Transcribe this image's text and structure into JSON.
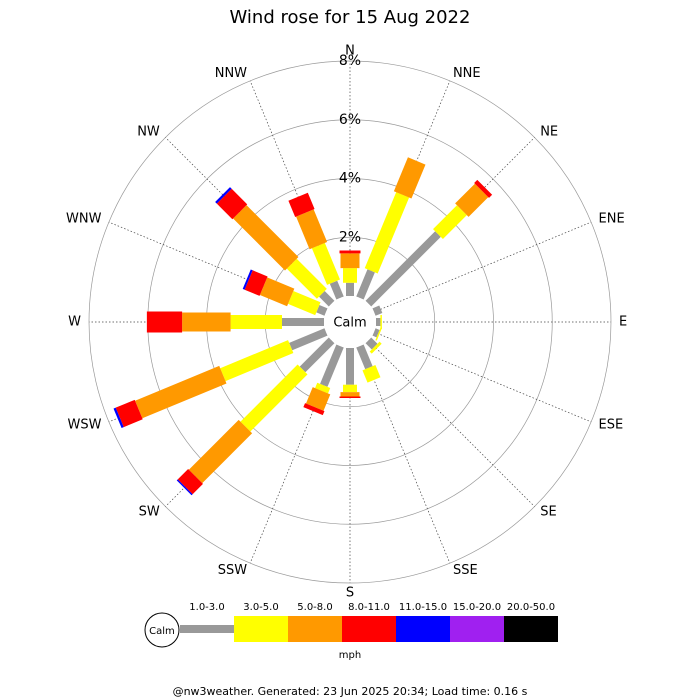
{
  "chart_data": {
    "type": "windrose",
    "title": "Wind rose for 15 Aug 2022",
    "categories": [
      "N",
      "NNE",
      "NE",
      "ENE",
      "E",
      "ESE",
      "SE",
      "SSE",
      "S",
      "SSW",
      "SW",
      "WSW",
      "W",
      "WNW",
      "NW",
      "NNW"
    ],
    "rlim": [
      0,
      8
    ],
    "rticks": [
      {
        "value": 2,
        "label": "2%"
      },
      {
        "value": 4,
        "label": "4%"
      },
      {
        "value": 6,
        "label": "6%"
      },
      {
        "value": 8,
        "label": "8%"
      }
    ],
    "calm_label": "Calm",
    "unit": "mph",
    "footer": "@nw3weather. Generated: 23 Jun 2025 20:34; Load time: 0.16 s",
    "series": [
      {
        "name": "1.0-3.0",
        "color": "#999999",
        "values": [
          0.45,
          1.0,
          3.35,
          0.25,
          0.15,
          0.15,
          0.3,
          0.8,
          1.25,
          1.45,
          1.4,
          1.3,
          1.43,
          0.3,
          0.47,
          0.58
        ]
      },
      {
        "name": "3.0-5.0",
        "color": "#ffff00",
        "values": [
          0.5,
          2.8,
          1.15,
          0,
          0.05,
          0.05,
          0.1,
          0.45,
          0.25,
          0.2,
          2.75,
          2.5,
          1.75,
          1.0,
          1.45,
          1.35
        ]
      },
      {
        "name": "5.0-8.0",
        "color": "#ff9900",
        "values": [
          0.5,
          1.25,
          0.95,
          0,
          0,
          0,
          0,
          0,
          0.15,
          0.6,
          2.4,
          3.1,
          1.65,
          1.0,
          2.5,
          1.2
        ]
      },
      {
        "name": "8.0-11.0",
        "color": "#ff0000",
        "values": [
          0.1,
          0,
          0.15,
          0,
          0,
          0,
          0,
          0,
          0.05,
          0.15,
          0.5,
          0.7,
          1.2,
          0.55,
          0.75,
          0.6
        ]
      },
      {
        "name": "11.0-15.0",
        "color": "#0000ff",
        "values": [
          0,
          0,
          0,
          0,
          0,
          0,
          0,
          0,
          0,
          0,
          0.05,
          0.08,
          0,
          0.07,
          0.08,
          0
        ]
      },
      {
        "name": "15.0-20.0",
        "color": "#a020f0",
        "values": [
          0,
          0,
          0,
          0,
          0,
          0,
          0,
          0,
          0,
          0,
          0,
          0,
          0,
          0,
          0,
          0
        ]
      },
      {
        "name": "20.0-50.0",
        "color": "#000000",
        "values": [
          0,
          0,
          0,
          0,
          0,
          0,
          0,
          0,
          0,
          0,
          0,
          0,
          0,
          0,
          0,
          0
        ]
      }
    ]
  }
}
